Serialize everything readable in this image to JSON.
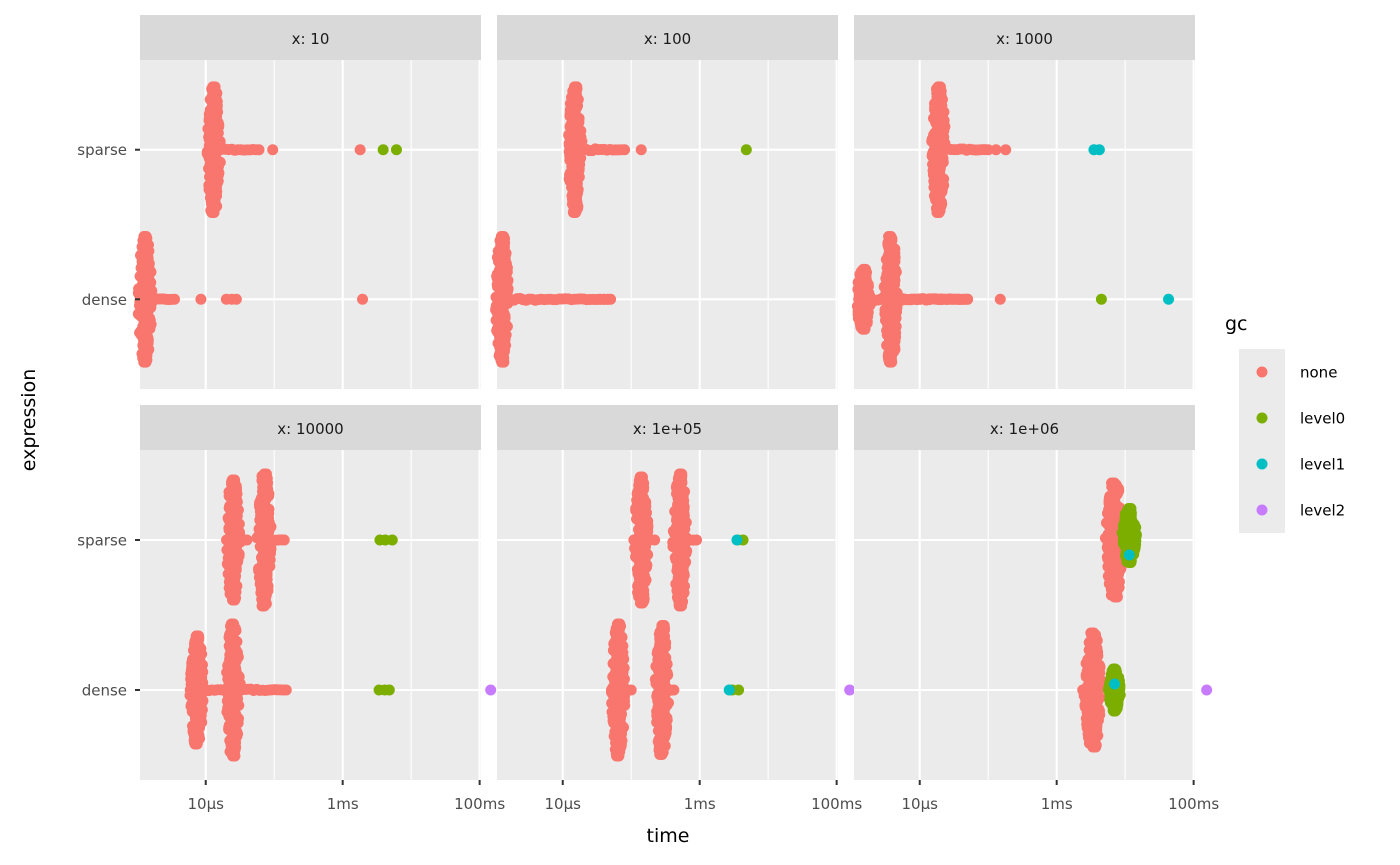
{
  "chart_data": {
    "type": "scatter",
    "subtype": "faceted beeswarm (quasirandom) plot",
    "xlabel": "time",
    "ylabel": "expression",
    "x_scale": "log10",
    "x_unit": "seconds",
    "xlim_log10": [
      -5.96,
      -0.98
    ],
    "x_ticks": [
      {
        "value": 1e-05,
        "label": "10µs"
      },
      {
        "value": 0.001,
        "label": "1ms"
      },
      {
        "value": 0.1,
        "label": "100ms"
      }
    ],
    "y_categories": [
      "dense",
      "sparse"
    ],
    "grid": true,
    "legend": {
      "title": "gc",
      "position": "right",
      "entries": [
        {
          "key": "none",
          "label": "none",
          "color": "#F8766D"
        },
        {
          "key": "level0",
          "label": "level0",
          "color": "#7CAE00"
        },
        {
          "key": "level1",
          "label": "level1",
          "color": "#00BFC4"
        },
        {
          "key": "level2",
          "label": "level2",
          "color": "#C77CFF"
        }
      ]
    },
    "facets": [
      {
        "label": "x: 10",
        "clusters": [
          {
            "expression": "sparse",
            "gc": "none",
            "center": 1.3e-05,
            "spread": 0.42,
            "tail_to": 6e-05
          },
          {
            "expression": "dense",
            "gc": "none",
            "center": 1.3e-06,
            "spread": 0.42,
            "tail_to": 3.5e-06
          }
        ],
        "points": [
          {
            "expression": "sparse",
            "gc": "none",
            "time": 9.5e-05
          },
          {
            "expression": "sparse",
            "gc": "none",
            "time": 0.0018
          },
          {
            "expression": "sparse",
            "gc": "level0",
            "time": 0.0039
          },
          {
            "expression": "sparse",
            "gc": "level0",
            "time": 0.0061
          },
          {
            "expression": "dense",
            "gc": "none",
            "time": 8.5e-06
          },
          {
            "expression": "dense",
            "gc": "none",
            "time": 2e-05
          },
          {
            "expression": "dense",
            "gc": "none",
            "time": 2.4e-05
          },
          {
            "expression": "dense",
            "gc": "none",
            "time": 2.8e-05
          },
          {
            "expression": "dense",
            "gc": "none",
            "time": 0.00195
          }
        ]
      },
      {
        "label": "x: 100",
        "clusters": [
          {
            "expression": "sparse",
            "gc": "none",
            "center": 1.5e-05,
            "spread": 0.42,
            "tail_to": 8e-05
          },
          {
            "expression": "dense",
            "gc": "none",
            "center": 1.3e-06,
            "spread": 0.42,
            "tail_to": 5e-05
          }
        ],
        "points": [
          {
            "expression": "sparse",
            "gc": "none",
            "time": 0.00014
          },
          {
            "expression": "sparse",
            "gc": "level0",
            "time": 0.0048
          },
          {
            "expression": "dense",
            "gc": "none",
            "time": 3.5e-05
          },
          {
            "expression": "dense",
            "gc": "none",
            "time": 4e-05
          },
          {
            "expression": "dense",
            "gc": "none",
            "time": 4.6e-05
          }
        ]
      },
      {
        "label": "x: 1000",
        "clusters": [
          {
            "expression": "sparse",
            "gc": "none",
            "center": 1.9e-05,
            "spread": 0.42,
            "tail_to": 0.0001
          },
          {
            "expression": "dense",
            "gc": "none",
            "center": 1.5e-06,
            "spread": 0.2,
            "tail_to": 5e-05
          },
          {
            "expression": "dense",
            "gc": "none",
            "center": 3.8e-06,
            "spread": 0.42,
            "tail_to": 5e-05
          }
        ],
        "points": [
          {
            "expression": "sparse",
            "gc": "none",
            "time": 0.00013
          },
          {
            "expression": "sparse",
            "gc": "none",
            "time": 0.00018
          },
          {
            "expression": "sparse",
            "gc": "level1",
            "time": 0.0035
          },
          {
            "expression": "sparse",
            "gc": "level1",
            "time": 0.0042
          },
          {
            "expression": "dense",
            "gc": "none",
            "time": 0.00015
          },
          {
            "expression": "dense",
            "gc": "level0",
            "time": 0.0045
          },
          {
            "expression": "dense",
            "gc": "level1",
            "time": 0.043
          }
        ]
      },
      {
        "label": "x: 10000",
        "clusters": [
          {
            "expression": "sparse",
            "gc": "none",
            "center": 2.5e-05,
            "spread": 0.4,
            "tail_to": 4e-05
          },
          {
            "expression": "sparse",
            "gc": "none",
            "center": 7.2e-05,
            "spread": 0.44,
            "tail_to": 0.00014
          },
          {
            "expression": "dense",
            "gc": "none",
            "center": 7.5e-06,
            "spread": 0.36,
            "tail_to": 2e-05
          },
          {
            "expression": "dense",
            "gc": "none",
            "center": 2.5e-05,
            "spread": 0.44,
            "tail_to": 0.00015
          }
        ],
        "points": [
          {
            "expression": "sparse",
            "gc": "level0",
            "time": 0.0035
          },
          {
            "expression": "sparse",
            "gc": "level0",
            "time": 0.0042
          },
          {
            "expression": "sparse",
            "gc": "level0",
            "time": 0.0053
          },
          {
            "expression": "dense",
            "gc": "level0",
            "time": 0.0034
          },
          {
            "expression": "dense",
            "gc": "level0",
            "time": 0.0041
          },
          {
            "expression": "dense",
            "gc": "level0",
            "time": 0.0048
          },
          {
            "expression": "dense",
            "gc": "level2",
            "time": 0.145
          }
        ]
      },
      {
        "label": "x: 1e+05",
        "clusters": [
          {
            "expression": "sparse",
            "gc": "none",
            "center": 0.00014,
            "spread": 0.42,
            "tail_to": 0.00022
          },
          {
            "expression": "sparse",
            "gc": "none",
            "center": 0.00052,
            "spread": 0.44,
            "tail_to": 0.0009
          },
          {
            "expression": "dense",
            "gc": "none",
            "center": 6.5e-05,
            "spread": 0.44,
            "tail_to": 0.0001
          },
          {
            "expression": "dense",
            "gc": "none",
            "center": 0.00028,
            "spread": 0.43,
            "tail_to": 0.00042
          }
        ],
        "points": [
          {
            "expression": "sparse",
            "gc": "level0",
            "time": 0.0036
          },
          {
            "expression": "sparse",
            "gc": "level0",
            "time": 0.0043
          },
          {
            "expression": "sparse",
            "gc": "level1",
            "time": 0.0035
          },
          {
            "expression": "dense",
            "gc": "level0",
            "time": 0.003
          },
          {
            "expression": "dense",
            "gc": "level0",
            "time": 0.0037
          },
          {
            "expression": "dense",
            "gc": "level1",
            "time": 0.0027
          },
          {
            "expression": "dense",
            "gc": "level2",
            "time": 0.155
          }
        ]
      },
      {
        "label": "x: 1e+06",
        "clusters": [
          {
            "expression": "sparse",
            "gc": "none",
            "center": 0.007,
            "spread": 0.38,
            "tail_to": 0.007,
            "width": 0.15
          },
          {
            "expression": "dense",
            "gc": "none",
            "center": 0.0034,
            "spread": 0.38,
            "tail_to": 0.0034,
            "width": 0.15
          },
          {
            "expression": "sparse",
            "gc": "level0",
            "center": 0.0115,
            "spread": 0.18,
            "tail_to": 0.0115,
            "width": 0.12,
            "offset": 0.03
          },
          {
            "expression": "dense",
            "gc": "level0",
            "center": 0.007,
            "spread": 0.14,
            "tail_to": 0.007,
            "width": 0.1
          }
        ],
        "points": [
          {
            "expression": "dense",
            "gc": "none",
            "time": 0.0024
          },
          {
            "expression": "sparse",
            "gc": "level1",
            "time": 0.0115,
            "offset": -0.1
          },
          {
            "expression": "dense",
            "gc": "level1",
            "time": 0.007,
            "offset": 0.04
          },
          {
            "expression": "dense",
            "gc": "level2",
            "time": 0.155
          }
        ]
      }
    ]
  }
}
